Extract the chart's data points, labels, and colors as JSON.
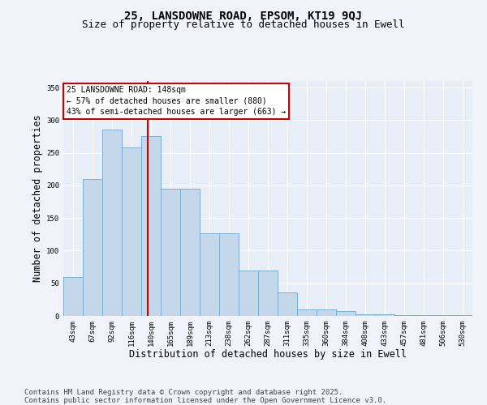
{
  "title_line1": "25, LANSDOWNE ROAD, EPSOM, KT19 9QJ",
  "title_line2": "Size of property relative to detached houses in Ewell",
  "xlabel": "Distribution of detached houses by size in Ewell",
  "ylabel": "Number of detached properties",
  "categories": [
    "43sqm",
    "67sqm",
    "92sqm",
    "116sqm",
    "140sqm",
    "165sqm",
    "189sqm",
    "213sqm",
    "238sqm",
    "262sqm",
    "287sqm",
    "311sqm",
    "335sqm",
    "360sqm",
    "384sqm",
    "408sqm",
    "433sqm",
    "457sqm",
    "481sqm",
    "506sqm",
    "530sqm"
  ],
  "bar_values": [
    60,
    210,
    285,
    258,
    275,
    195,
    195,
    127,
    127,
    70,
    70,
    36,
    10,
    10,
    8,
    3,
    3,
    1,
    1,
    1,
    1
  ],
  "bar_color": "#c5d8ea",
  "bar_edge_color": "#7bafd4",
  "property_line_color": "#cc0000",
  "annotation_text": "25 LANSDOWNE ROAD: 148sqm\n← 57% of detached houses are smaller (880)\n43% of semi-detached houses are larger (663) →",
  "annotation_box_edge_color": "#cc0000",
  "ylim": [
    0,
    360
  ],
  "yticks": [
    0,
    50,
    100,
    150,
    200,
    250,
    300,
    350
  ],
  "bin_edges": [
    43,
    67,
    92,
    116,
    140,
    165,
    189,
    213,
    238,
    262,
    287,
    311,
    335,
    360,
    384,
    408,
    433,
    457,
    481,
    506,
    530
  ],
  "property_size": 148,
  "footnote": "Contains HM Land Registry data © Crown copyright and database right 2025.\nContains public sector information licensed under the Open Government Licence v3.0.",
  "bg_color": "#e8eef7",
  "fig_bg_color": "#f0f4fa",
  "grid_color": "#ffffff",
  "title_fontsize": 10,
  "subtitle_fontsize": 9,
  "tick_fontsize": 6.5,
  "label_fontsize": 8.5,
  "footnote_fontsize": 6.5,
  "annot_fontsize": 7
}
